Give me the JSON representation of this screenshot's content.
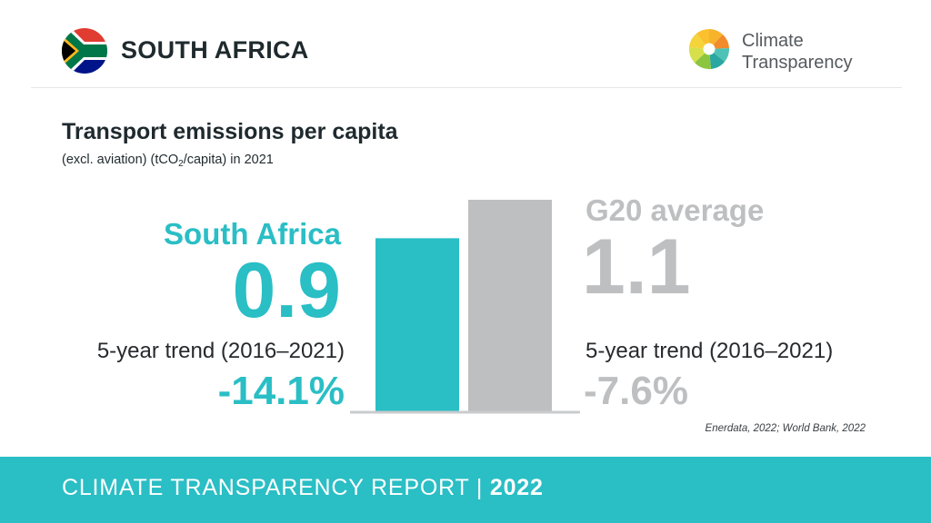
{
  "header": {
    "country": "SOUTH AFRICA",
    "logo_line1": "Climate",
    "logo_line2": "Transparency"
  },
  "chart_data": {
    "type": "bar",
    "title": "Transport emissions per capita",
    "subtitle_pre": "(excl. aviation) (tCO",
    "subtitle_sub": "2",
    "subtitle_post": "/capita) in 2021",
    "categories": [
      "South Africa",
      "G20 average"
    ],
    "values": [
      0.9,
      1.1
    ],
    "value_labels": [
      "0.9",
      "1.1"
    ],
    "trend_label": "5-year trend (2016–2021)",
    "trends": [
      "-14.1%",
      "-7.6%"
    ],
    "colors": [
      "#2abec5",
      "#bdbfc1"
    ],
    "source": "Enerdata, 2022; World Bank, 2022"
  },
  "footer": {
    "label": "CLIMATE TRANSPARENCY REPORT | ",
    "year": "2022"
  },
  "colors": {
    "accent": "#2abec5",
    "grey": "#bdbfc1",
    "text": "#1f2a2e"
  }
}
